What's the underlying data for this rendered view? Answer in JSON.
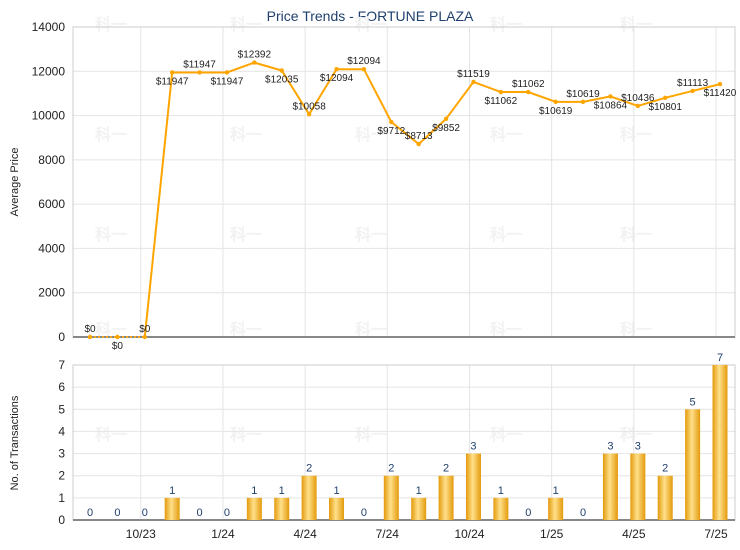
{
  "chart_data": [
    {
      "type": "line",
      "title": "Price Trends - FORTUNE PLAZA",
      "ylabel": "Average Price",
      "ylim": [
        0,
        14000
      ],
      "yticks": [
        0,
        2000,
        4000,
        6000,
        8000,
        10000,
        12000,
        14000
      ],
      "grid": true,
      "x_tick_labels": [
        "10/23",
        "1/24",
        "4/24",
        "7/24",
        "10/24",
        "1/25",
        "4/25",
        "7/25"
      ],
      "values": [
        0,
        0,
        0,
        11947,
        11947,
        11947,
        12392,
        12035,
        10058,
        12094,
        12094,
        9712,
        8713,
        9852,
        11519,
        11062,
        11062,
        10619,
        10619,
        10864,
        10436,
        10801,
        11113,
        11420
      ],
      "data_labels": [
        "$0",
        "$0",
        "$0",
        "$11947",
        "$11947",
        "$11947",
        "$12392",
        "$12035",
        "$10058",
        "$12094",
        "$12094",
        "$9712",
        "$8713",
        "$9852",
        "$11519",
        "$11062",
        "$11062",
        "$10619",
        "$10619",
        "$10864",
        "$10436",
        "$10801",
        "$11113",
        "$11420"
      ],
      "colors": {
        "line": "#FFA500",
        "line_zero": "#F5A623",
        "grid": "#E4E4E4",
        "axis": "#999999",
        "title": "#1F3F6E"
      }
    },
    {
      "type": "bar",
      "ylabel": "No. of Transactions",
      "ylim": [
        0,
        7
      ],
      "yticks": [
        0,
        1,
        2,
        3,
        4,
        5,
        6,
        7
      ],
      "grid": true,
      "x_tick_labels": [
        "10/23",
        "1/24",
        "4/24",
        "7/24",
        "10/24",
        "1/25",
        "4/25",
        "7/25"
      ],
      "values": [
        0,
        0,
        0,
        1,
        0,
        0,
        1,
        1,
        2,
        1,
        0,
        2,
        1,
        2,
        3,
        1,
        0,
        1,
        0,
        3,
        3,
        2,
        5,
        7
      ],
      "colors": {
        "bar_dark": "#E39A0C",
        "bar_light": "#FFE08A",
        "label": "#1F3F6E"
      }
    }
  ],
  "watermark": "科一"
}
